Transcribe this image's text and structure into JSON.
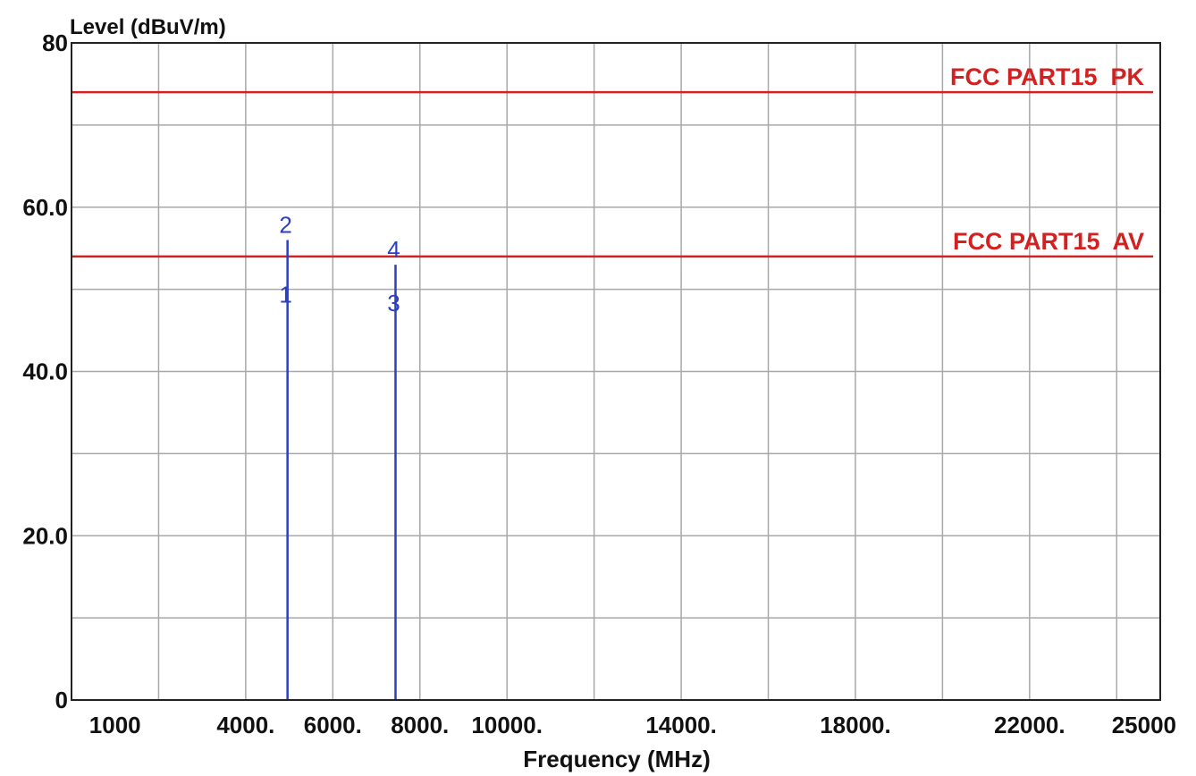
{
  "chart_data": {
    "type": "line",
    "ylabel": "Level (dBuV/m)",
    "xlabel": "Frequency (MHz)",
    "xlim": [
      0,
      25000
    ],
    "ylim": [
      0,
      80
    ],
    "grid": true,
    "x_ticks": [
      {
        "value": 1000,
        "label": "1000"
      },
      {
        "value": 4000,
        "label": "4000."
      },
      {
        "value": 6000,
        "label": "6000."
      },
      {
        "value": 8000,
        "label": "8000."
      },
      {
        "value": 10000,
        "label": "10000."
      },
      {
        "value": 14000,
        "label": "14000."
      },
      {
        "value": 18000,
        "label": "18000."
      },
      {
        "value": 22000,
        "label": "22000."
      },
      {
        "value": 25000,
        "label": "25000"
      }
    ],
    "y_ticks": [
      {
        "value": 0,
        "label": "0"
      },
      {
        "value": 20,
        "label": "20.0"
      },
      {
        "value": 40,
        "label": "40.0"
      },
      {
        "value": 60,
        "label": "60.0"
      },
      {
        "value": 80,
        "label": "80"
      }
    ],
    "limit_lines": [
      {
        "name": "FCC PART15  PK",
        "value": 74,
        "color": "#d42020"
      },
      {
        "name": "FCC PART15  AV",
        "value": 54,
        "color": "#d42020"
      }
    ],
    "markers": [
      {
        "label": "1",
        "x": 4960,
        "y": 47.5
      },
      {
        "label": "2",
        "x": 4960,
        "y": 56.0
      },
      {
        "label": "3",
        "x": 7440,
        "y": 46.5
      },
      {
        "label": "4",
        "x": 7440,
        "y": 53.0
      }
    ],
    "trace_color": "#2b3fbf"
  }
}
